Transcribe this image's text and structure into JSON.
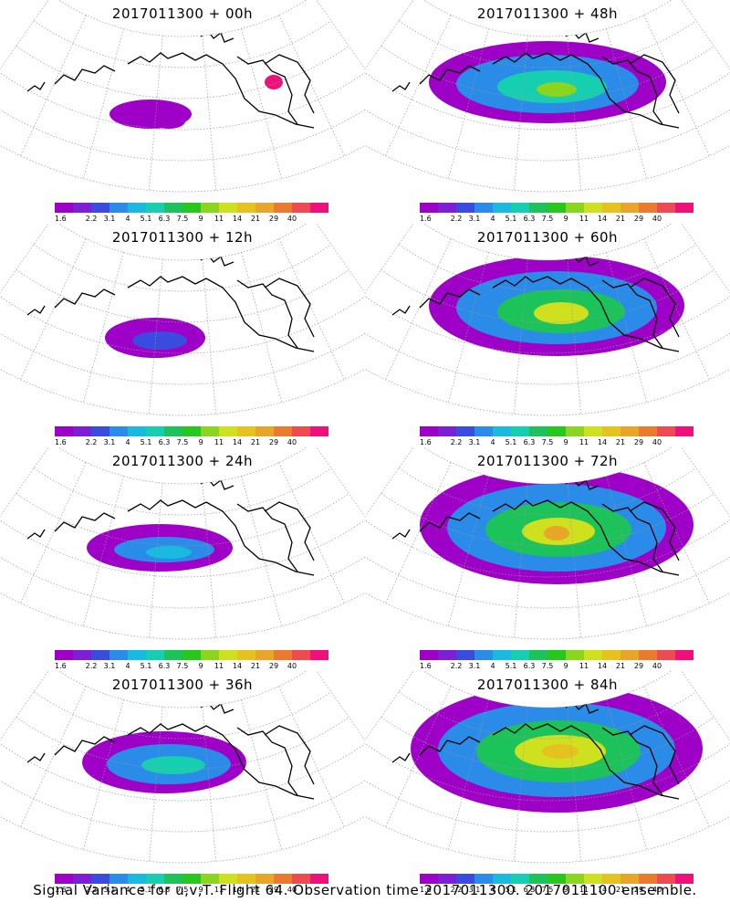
{
  "panels": [
    {
      "title": "2017011300 + 00h",
      "lead": "00h",
      "col": 0,
      "row": 0
    },
    {
      "title": "2017011300 + 48h",
      "lead": "48h",
      "col": 1,
      "row": 0
    },
    {
      "title": "2017011300 + 12h",
      "lead": "12h",
      "col": 0,
      "row": 1
    },
    {
      "title": "2017011300 + 60h",
      "lead": "60h",
      "col": 1,
      "row": 1
    },
    {
      "title": "2017011300 + 24h",
      "lead": "24h",
      "col": 0,
      "row": 2
    },
    {
      "title": "2017011300 + 72h",
      "lead": "72h",
      "col": 1,
      "row": 2
    },
    {
      "title": "2017011300 + 36h",
      "lead": "36h",
      "col": 0,
      "row": 3
    },
    {
      "title": "2017011300 + 84h",
      "lead": "84h",
      "col": 1,
      "row": 3
    }
  ],
  "colorbar": {
    "labels": [
      "1.6",
      "2.2",
      "3.1",
      "4",
      "5.1",
      "6.3",
      "7.5",
      "9",
      "11",
      "14",
      "21",
      "29",
      "40"
    ],
    "colors": [
      "#9f00c8",
      "#7d1fd6",
      "#3a4be0",
      "#2a8ce8",
      "#1ab9e0",
      "#16cfb0",
      "#1cc35a",
      "#26c81e",
      "#8ad61e",
      "#cfe01e",
      "#e6c21e",
      "#e8a628",
      "#ec7a2e",
      "#ee4a52",
      "#f0107a"
    ]
  },
  "caption": "Signal Variance for u,v,T. Flight 64. Observation time 2017011300. 2017011100 ensemble."
}
